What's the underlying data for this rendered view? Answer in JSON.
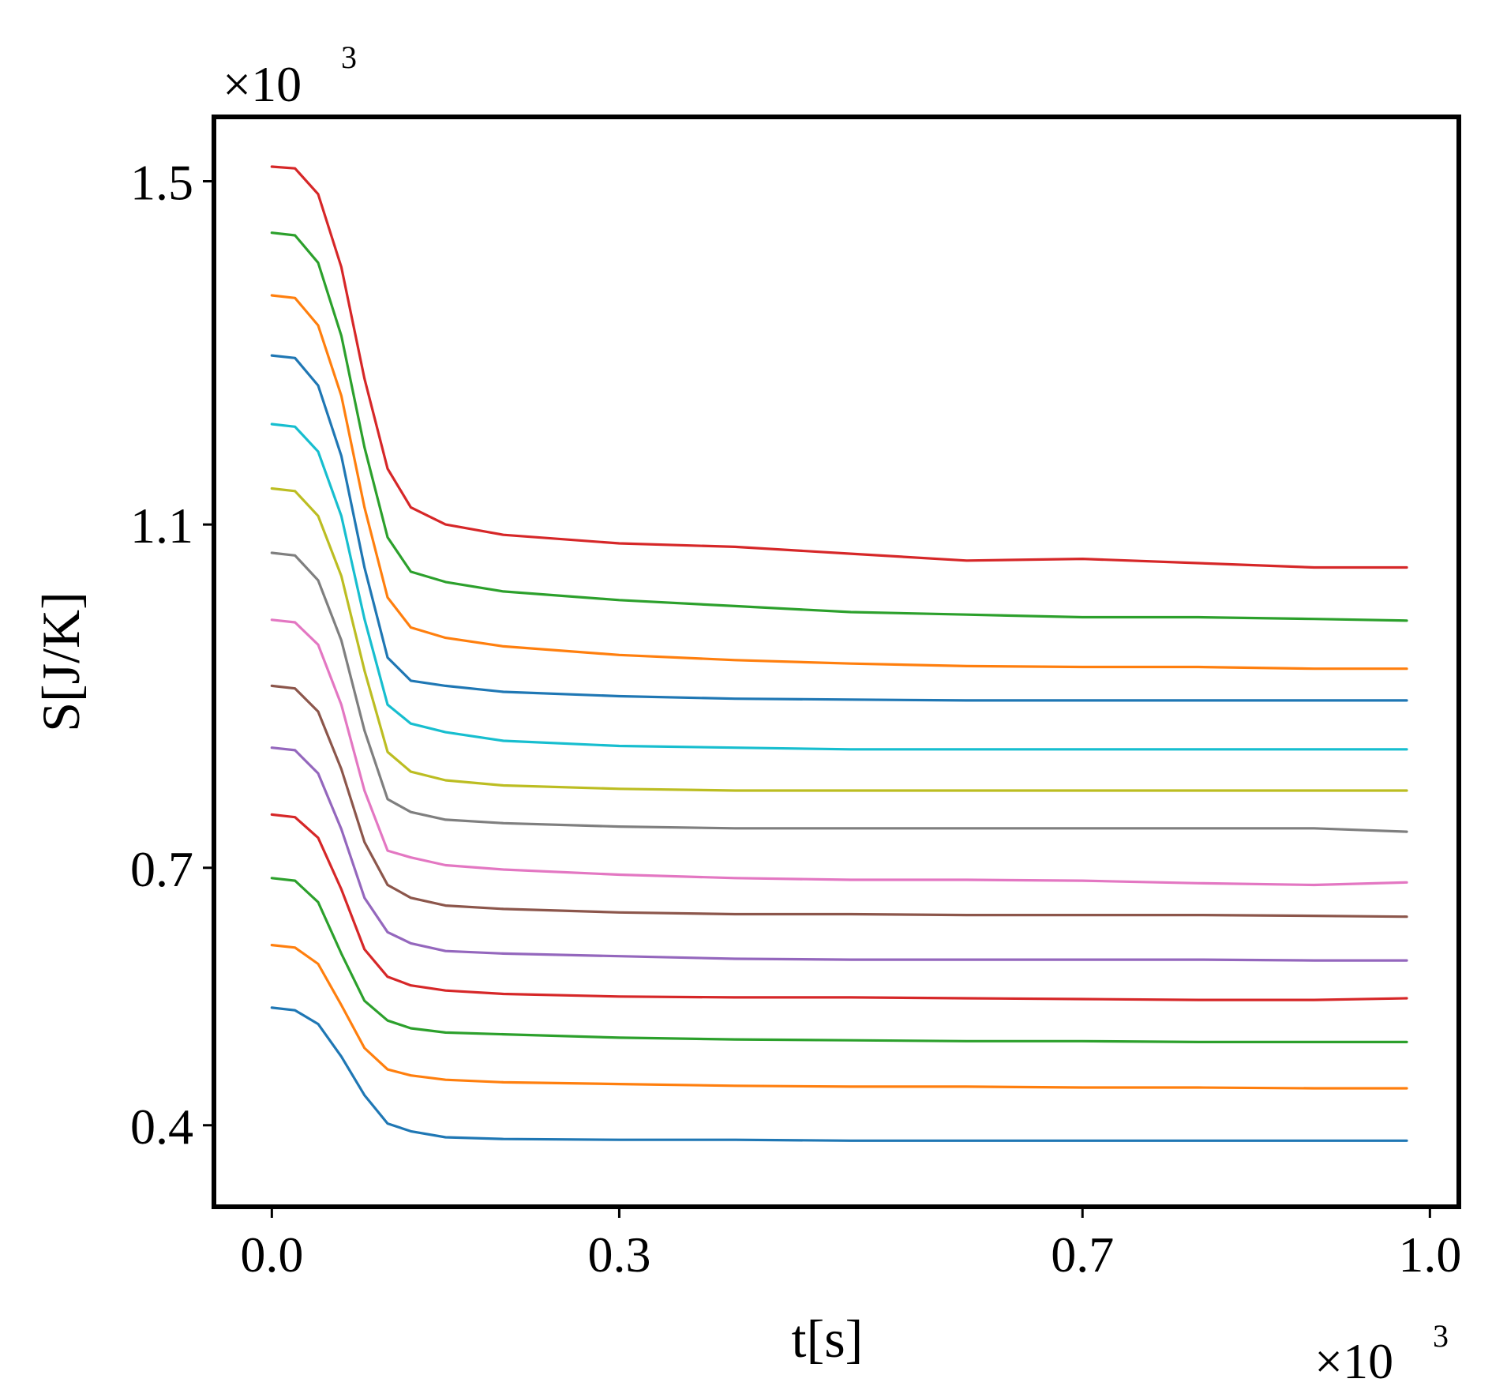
{
  "chart_data": {
    "type": "line",
    "title": "",
    "xlabel": "t[s]",
    "ylabel": "S[J/K]",
    "x_multiplier": "×10",
    "x_multiplier_exp": "3",
    "y_multiplier": "×10",
    "y_multiplier_exp": "3",
    "xlim": [
      -0.05,
      1.025
    ],
    "ylim": [
      0.305,
      1.575
    ],
    "x_ticks": [
      0.0,
      0.3,
      0.7,
      1.0
    ],
    "x_tick_labels": [
      "0.0",
      "0.3",
      "0.7",
      "1.0"
    ],
    "y_ticks": [
      0.4,
      0.7,
      1.1,
      1.5
    ],
    "y_tick_labels": [
      "0.4",
      "0.7",
      "1.1",
      "1.5"
    ],
    "grid": false,
    "legend": "none",
    "x": [
      0.0,
      0.02,
      0.04,
      0.06,
      0.08,
      0.1,
      0.12,
      0.15,
      0.2,
      0.3,
      0.4,
      0.5,
      0.6,
      0.7,
      0.8,
      0.9,
      0.98
    ],
    "series": [
      {
        "color": "#d62728",
        "values": [
          1.517,
          1.515,
          1.485,
          1.4,
          1.27,
          1.165,
          1.12,
          1.1,
          1.088,
          1.078,
          1.074,
          1.066,
          1.058,
          1.06,
          1.055,
          1.05,
          1.05
        ]
      },
      {
        "color": "#2ca02c",
        "values": [
          1.44,
          1.437,
          1.405,
          1.32,
          1.19,
          1.085,
          1.045,
          1.033,
          1.022,
          1.012,
          1.005,
          0.998,
          0.995,
          0.992,
          0.992,
          0.99,
          0.988
        ]
      },
      {
        "color": "#ff7f0e",
        "values": [
          1.367,
          1.364,
          1.332,
          1.25,
          1.12,
          1.015,
          0.98,
          0.968,
          0.958,
          0.948,
          0.942,
          0.938,
          0.935,
          0.934,
          0.934,
          0.932,
          0.932
        ]
      },
      {
        "color": "#1f77b4",
        "values": [
          1.297,
          1.294,
          1.262,
          1.18,
          1.05,
          0.945,
          0.918,
          0.912,
          0.905,
          0.9,
          0.897,
          0.896,
          0.895,
          0.895,
          0.895,
          0.895,
          0.895
        ]
      },
      {
        "color": "#17becf",
        "values": [
          1.217,
          1.214,
          1.185,
          1.11,
          0.99,
          0.89,
          0.868,
          0.858,
          0.848,
          0.842,
          0.84,
          0.838,
          0.838,
          0.838,
          0.838,
          0.838,
          0.838
        ]
      },
      {
        "color": "#bcbd22",
        "values": [
          1.142,
          1.139,
          1.11,
          1.04,
          0.93,
          0.835,
          0.812,
          0.802,
          0.796,
          0.792,
          0.79,
          0.79,
          0.79,
          0.79,
          0.79,
          0.79,
          0.79
        ]
      },
      {
        "color": "#7f7f7f",
        "values": [
          1.067,
          1.064,
          1.035,
          0.965,
          0.86,
          0.78,
          0.765,
          0.756,
          0.752,
          0.748,
          0.746,
          0.746,
          0.746,
          0.746,
          0.746,
          0.746,
          0.742
        ]
      },
      {
        "color": "#e377c2",
        "values": [
          0.989,
          0.986,
          0.96,
          0.89,
          0.79,
          0.72,
          0.712,
          0.703,
          0.698,
          0.692,
          0.688,
          0.686,
          0.686,
          0.685,
          0.682,
          0.68,
          0.683
        ]
      },
      {
        "color": "#8c564b",
        "values": [
          0.912,
          0.909,
          0.882,
          0.815,
          0.73,
          0.68,
          0.665,
          0.656,
          0.652,
          0.648,
          0.646,
          0.646,
          0.645,
          0.645,
          0.645,
          0.644,
          0.643
        ]
      },
      {
        "color": "#9467bd",
        "values": [
          0.84,
          0.837,
          0.81,
          0.745,
          0.665,
          0.625,
          0.612,
          0.603,
          0.6,
          0.597,
          0.594,
          0.593,
          0.593,
          0.593,
          0.593,
          0.592,
          0.592
        ]
      },
      {
        "color": "#d62728",
        "values": [
          0.762,
          0.759,
          0.735,
          0.675,
          0.605,
          0.573,
          0.563,
          0.557,
          0.553,
          0.55,
          0.549,
          0.549,
          0.548,
          0.547,
          0.546,
          0.546,
          0.548
        ]
      },
      {
        "color": "#2ca02c",
        "values": [
          0.688,
          0.685,
          0.66,
          0.6,
          0.545,
          0.522,
          0.513,
          0.508,
          0.506,
          0.502,
          0.5,
          0.499,
          0.498,
          0.498,
          0.497,
          0.497,
          0.497
        ]
      },
      {
        "color": "#ff7f0e",
        "values": [
          0.61,
          0.607,
          0.588,
          0.54,
          0.49,
          0.465,
          0.458,
          0.453,
          0.45,
          0.448,
          0.446,
          0.445,
          0.445,
          0.444,
          0.444,
          0.443,
          0.443
        ]
      },
      {
        "color": "#1f77b4",
        "values": [
          0.537,
          0.534,
          0.518,
          0.48,
          0.435,
          0.402,
          0.393,
          0.386,
          0.384,
          0.383,
          0.383,
          0.382,
          0.382,
          0.382,
          0.382,
          0.382,
          0.382
        ]
      }
    ]
  }
}
